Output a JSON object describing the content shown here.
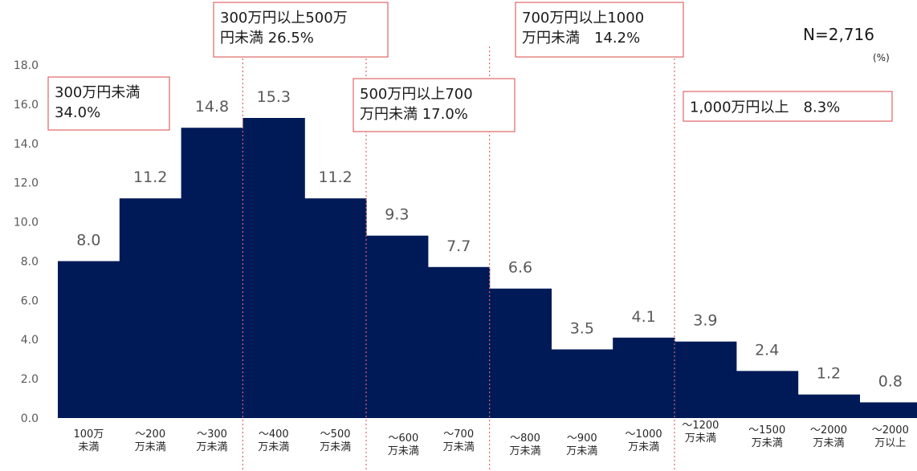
{
  "chart_data": {
    "type": "bar",
    "n_label": "N=2,716",
    "unit": "(%)",
    "ylim": [
      0,
      18
    ],
    "yticks": [
      "0.0",
      "2.0",
      "4.0",
      "6.0",
      "8.0",
      "10.0",
      "12.0",
      "14.0",
      "16.0",
      "18.0"
    ],
    "categories": [
      [
        "100万",
        "未満"
      ],
      [
        "～200",
        "万未満"
      ],
      [
        "～300",
        "万未満"
      ],
      [
        "～400",
        "万未満"
      ],
      [
        "～500",
        "万未満"
      ],
      [
        "～600",
        "万未満"
      ],
      [
        "～700",
        "万未満"
      ],
      [
        "～800",
        "万未満"
      ],
      [
        "～900",
        "万未満"
      ],
      [
        "～1000",
        "万未満"
      ],
      [
        "～1200",
        "万未満"
      ],
      [
        "～1500",
        "万未満"
      ],
      [
        "～2000",
        "万未満"
      ],
      [
        "～2000",
        "万以上"
      ]
    ],
    "values": [
      8.0,
      11.2,
      14.8,
      15.3,
      11.2,
      9.3,
      7.7,
      6.6,
      3.5,
      4.1,
      3.9,
      2.4,
      1.2,
      0.8
    ],
    "value_labels": [
      "8.0",
      "11.2",
      "14.8",
      "15.3",
      "11.2",
      "9.3",
      "7.7",
      "6.6",
      "3.5",
      "4.1",
      "3.9",
      "2.4",
      "1.2",
      "0.8"
    ],
    "bar_color": "#001a57",
    "annotation_color": "#e06666",
    "annotations": [
      {
        "lines": [
          "300万円未満",
          "34.0%"
        ]
      },
      {
        "lines": [
          "300万円以上500万",
          "円未満 26.5%"
        ]
      },
      {
        "lines": [
          "500万円以上700",
          "万円未満 17.0%"
        ]
      },
      {
        "lines": [
          "700万円以上1000",
          "万円未満　14.2%"
        ]
      },
      {
        "lines": [
          "1,000万円以上　8.3%"
        ]
      }
    ]
  }
}
